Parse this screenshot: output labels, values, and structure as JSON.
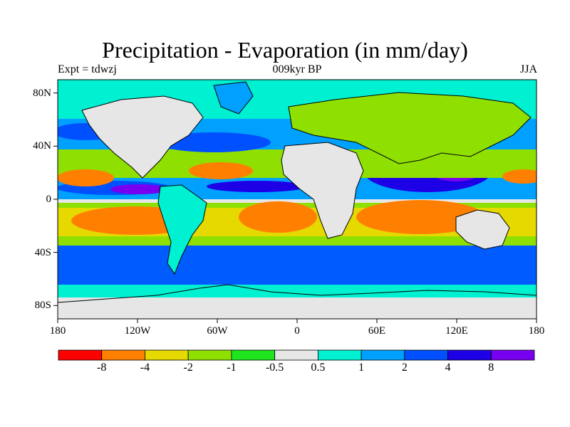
{
  "title": "Precipitation - Evaporation (in mm/day)",
  "subtitle_left": "Expt = tdwzj",
  "subtitle_center": "009kyr BP",
  "subtitle_right": "JJA",
  "map": {
    "projection": "cylindrical-equidistant",
    "lon_range": [
      -180,
      180
    ],
    "lat_range": [
      -90,
      90
    ],
    "lat_ticks": [
      "80N",
      "40N",
      "0",
      "40S",
      "80S"
    ],
    "lon_ticks": [
      "180",
      "120W",
      "60W",
      "0",
      "60E",
      "120E",
      "180"
    ],
    "lat_tick_values": [
      80,
      40,
      0,
      -40,
      -80
    ],
    "lon_tick_values": [
      -180,
      -120,
      -60,
      0,
      60,
      120,
      180
    ]
  },
  "colorbar": {
    "labels": [
      "-8",
      "-4",
      "-2",
      "-1",
      "-0.5",
      "0.5",
      "1",
      "2",
      "4",
      "8"
    ],
    "colors": [
      "#ff0000",
      "#ff7f00",
      "#e5d900",
      "#8fe000",
      "#1ee51e",
      "#e6e6e6",
      "#00f0d2",
      "#00a0ff",
      "#0050ff",
      "#1e00e6",
      "#7800f0"
    ]
  }
}
